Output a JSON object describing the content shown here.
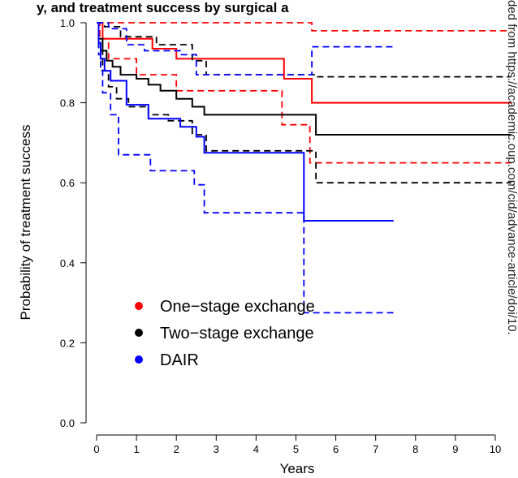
{
  "chart_data": {
    "type": "line",
    "title": "y, and treatment success by surgical a",
    "xlabel": "Years",
    "ylabel": "Probability of treatment success",
    "xlim": [
      -0.3,
      10.4
    ],
    "ylim": [
      -0.04,
      1.04
    ],
    "x_ticks": [
      0,
      1,
      2,
      3,
      4,
      5,
      6,
      7,
      8,
      9,
      10
    ],
    "y_ticks": [
      0.0,
      0.2,
      0.4,
      0.6,
      0.8,
      1.0
    ],
    "y_tick_labels": [
      "0.0",
      "0.2",
      "0.4",
      "0.6",
      "0.8",
      "1.0"
    ],
    "grid": false,
    "legend_position": "bottom-left",
    "side_text": "ded from https://academic.oup.com/cid/advance-article/doi/10.",
    "series": [
      {
        "name": "One−stage exchange",
        "color": "#ff0000",
        "estimate": [
          [
            0,
            1.0
          ],
          [
            0.15,
            0.96
          ],
          [
            1.4,
            0.935
          ],
          [
            2.0,
            0.91
          ],
          [
            4.7,
            0.86
          ],
          [
            5.4,
            0.8
          ],
          [
            10.4,
            0.8
          ]
        ],
        "upper": [
          [
            0,
            1.0
          ],
          [
            0.4,
            1.0
          ],
          [
            5.4,
            0.98
          ],
          [
            10.4,
            0.98
          ]
        ],
        "lower": [
          [
            0,
            1.0
          ],
          [
            0.08,
            0.96
          ],
          [
            0.3,
            0.91
          ],
          [
            1.0,
            0.87
          ],
          [
            2.0,
            0.83
          ],
          [
            3.3,
            0.83
          ],
          [
            4.65,
            0.745
          ],
          [
            5.35,
            0.65
          ],
          [
            10.4,
            0.65
          ]
        ]
      },
      {
        "name": "Two−stage exchange",
        "color": "#000000",
        "estimate": [
          [
            0,
            1.0
          ],
          [
            0.05,
            0.96
          ],
          [
            0.15,
            0.93
          ],
          [
            0.25,
            0.905
          ],
          [
            0.4,
            0.89
          ],
          [
            0.6,
            0.87
          ],
          [
            1.0,
            0.86
          ],
          [
            1.3,
            0.845
          ],
          [
            1.6,
            0.83
          ],
          [
            2.0,
            0.81
          ],
          [
            2.4,
            0.79
          ],
          [
            2.7,
            0.77
          ],
          [
            5.5,
            0.72
          ],
          [
            10.4,
            0.72
          ]
        ],
        "upper": [
          [
            0,
            1.0
          ],
          [
            0.2,
            0.99
          ],
          [
            0.6,
            0.965
          ],
          [
            1.5,
            0.945
          ],
          [
            2.4,
            0.905
          ],
          [
            2.75,
            0.87
          ],
          [
            5.5,
            0.865
          ],
          [
            10.4,
            0.865
          ]
        ],
        "lower": [
          [
            0,
            1.0
          ],
          [
            0.05,
            0.93
          ],
          [
            0.15,
            0.88
          ],
          [
            0.3,
            0.84
          ],
          [
            0.5,
            0.81
          ],
          [
            0.8,
            0.79
          ],
          [
            1.3,
            0.77
          ],
          [
            1.8,
            0.755
          ],
          [
            2.4,
            0.72
          ],
          [
            2.75,
            0.68
          ],
          [
            5.5,
            0.6
          ],
          [
            10.4,
            0.6
          ]
        ]
      },
      {
        "name": "DAIR",
        "color": "#0000ff",
        "estimate": [
          [
            0,
            1.0
          ],
          [
            0.05,
            0.95
          ],
          [
            0.1,
            0.91
          ],
          [
            0.2,
            0.88
          ],
          [
            0.35,
            0.855
          ],
          [
            0.75,
            0.795
          ],
          [
            1.3,
            0.76
          ],
          [
            2.1,
            0.74
          ],
          [
            2.5,
            0.715
          ],
          [
            2.7,
            0.675
          ],
          [
            5.2,
            0.505
          ],
          [
            7.45,
            0.505
          ]
        ],
        "upper": [
          [
            0,
            1.0
          ],
          [
            0.3,
            0.985
          ],
          [
            0.75,
            0.945
          ],
          [
            1.2,
            0.93
          ],
          [
            2.1,
            0.92
          ],
          [
            2.5,
            0.87
          ],
          [
            5.2,
            0.87
          ],
          [
            5.4,
            0.94
          ],
          [
            7.45,
            0.94
          ]
        ],
        "lower": [
          [
            0,
            1.0
          ],
          [
            0.05,
            0.92
          ],
          [
            0.1,
            0.88
          ],
          [
            0.15,
            0.825
          ],
          [
            0.35,
            0.77
          ],
          [
            0.55,
            0.67
          ],
          [
            1.35,
            0.63
          ],
          [
            2.45,
            0.595
          ],
          [
            2.7,
            0.525
          ],
          [
            5.2,
            0.275
          ],
          [
            7.45,
            0.275
          ]
        ]
      }
    ]
  }
}
